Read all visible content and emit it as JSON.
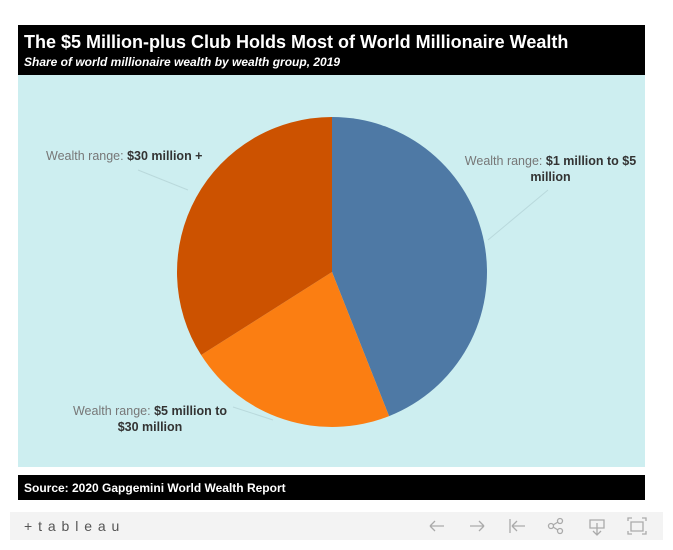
{
  "chart_data": {
    "type": "pie",
    "title": "The $5 Million-plus Club Holds Most of World Millionaire Wealth",
    "subtitle": "Share of world millionaire wealth by wealth group, 2019",
    "label_prefix": "Wealth range:",
    "categories": [
      "$1 million to $5 million",
      "$5 million to $30 million",
      "$30 million +"
    ],
    "values": [
      44,
      22,
      34
    ],
    "colors": [
      "#4e79a5",
      "#fb7e12",
      "#cc5200"
    ],
    "source": "Source: 2020 Gapgemini World Wealth Report"
  },
  "footer": {
    "brand": "+ t a b l e a u"
  }
}
